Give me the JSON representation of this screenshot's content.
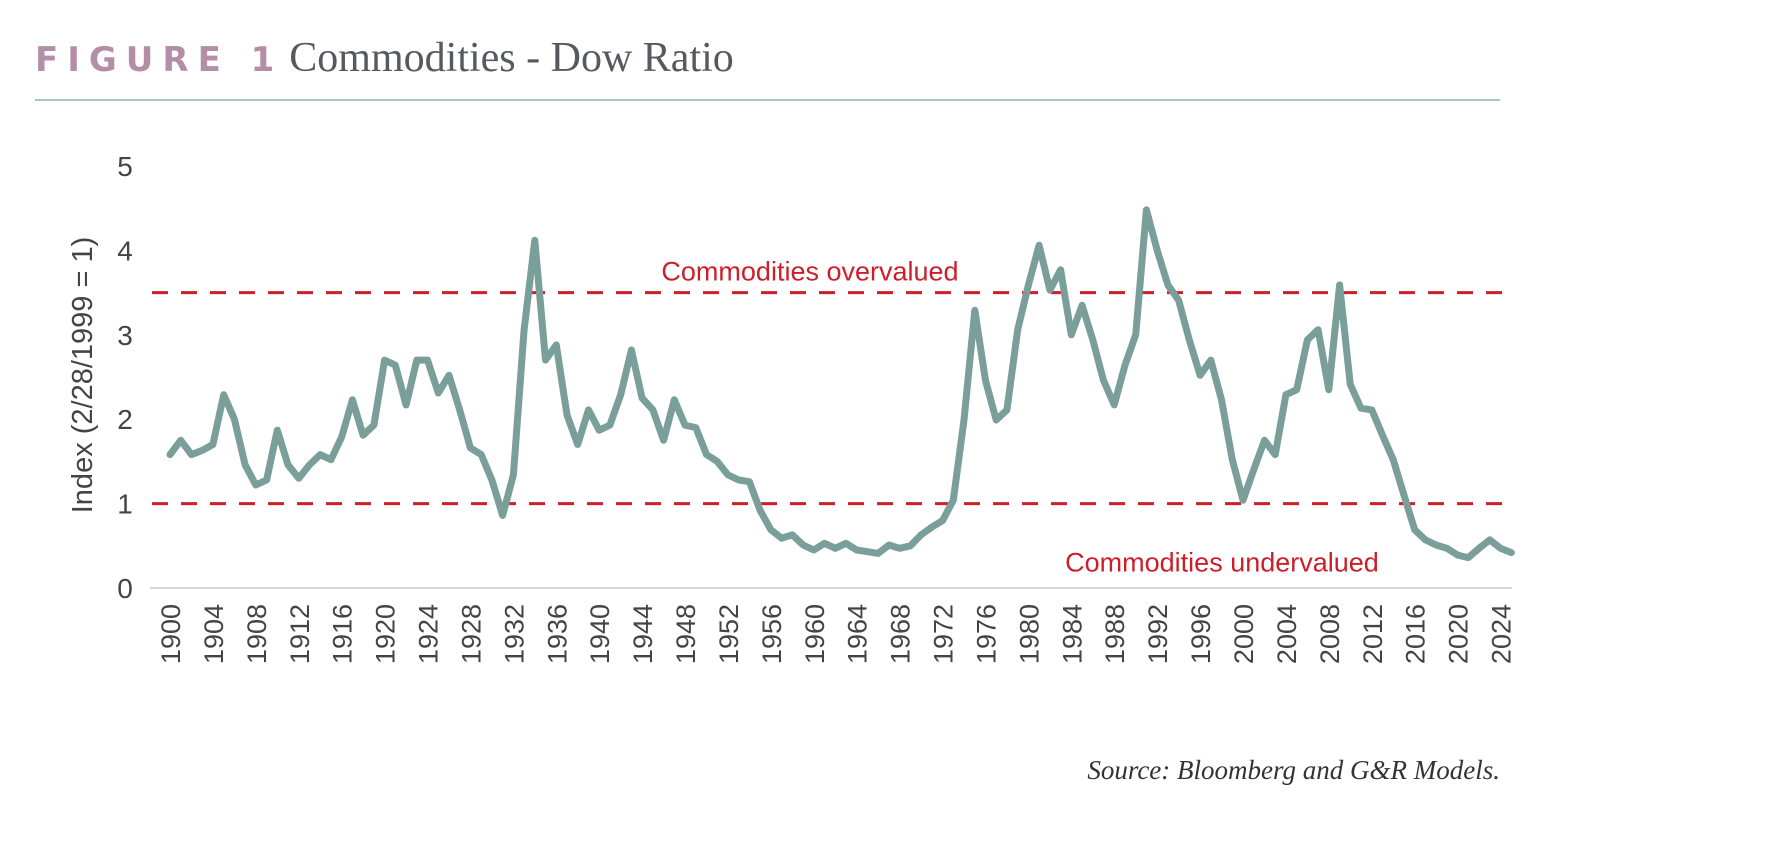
{
  "header": {
    "figure_label": "FIGURE 1",
    "title": "Commodities - Dow Ratio"
  },
  "source": "Source: Bloomberg and G&R Models.",
  "colors": {
    "line": "#7a9e9a",
    "threshold": "#cc1f2a",
    "figure_label": "#b48da6",
    "rule": "#a9c4c4"
  },
  "chart_data": {
    "type": "line",
    "title": "Commodities - Dow Ratio",
    "xlabel": "",
    "ylabel": "Index (2/28/1999 = 1)",
    "ylim": [
      0,
      5
    ],
    "xlim": [
      1900,
      2025
    ],
    "yticks": [
      "0",
      "1",
      "2",
      "3",
      "4",
      "5"
    ],
    "xticks": [
      "1900",
      "1904",
      "1908",
      "1912",
      "1916",
      "1920",
      "1924",
      "1928",
      "1932",
      "1936",
      "1940",
      "1944",
      "1948",
      "1952",
      "1956",
      "1960",
      "1964",
      "1968",
      "1972",
      "1976",
      "1980",
      "1984",
      "1988",
      "1992",
      "1996",
      "2000",
      "2004",
      "2008",
      "2012",
      "2016",
      "2020",
      "2024"
    ],
    "grid": false,
    "thresholds": [
      {
        "value": 3.5,
        "label": "Commodities overvalued"
      },
      {
        "value": 1.0,
        "label": "Commodities undervalued"
      }
    ],
    "x": [
      1900,
      1901,
      1902,
      1903,
      1904,
      1905,
      1906,
      1907,
      1908,
      1909,
      1910,
      1911,
      1912,
      1913,
      1914,
      1915,
      1916,
      1917,
      1918,
      1919,
      1920,
      1921,
      1922,
      1923,
      1924,
      1925,
      1926,
      1927,
      1928,
      1929,
      1930,
      1931,
      1932,
      1933,
      1934,
      1935,
      1936,
      1937,
      1938,
      1939,
      1940,
      1941,
      1942,
      1943,
      1944,
      1945,
      1946,
      1947,
      1948,
      1949,
      1950,
      1951,
      1952,
      1953,
      1954,
      1955,
      1956,
      1957,
      1958,
      1959,
      1960,
      1961,
      1962,
      1963,
      1964,
      1965,
      1966,
      1967,
      1968,
      1969,
      1970,
      1971,
      1972,
      1973,
      1974,
      1975,
      1976,
      1977,
      1978,
      1979,
      1980,
      1981,
      1982,
      1983,
      1984,
      1985,
      1986,
      1987,
      1988,
      1989,
      1990,
      1991,
      1992,
      1993,
      1994,
      1995,
      1996,
      1997,
      1998,
      1999,
      2000,
      2001,
      2002,
      2003,
      2004,
      2005,
      2006,
      2007,
      2008,
      2009,
      2010,
      2011,
      2012,
      2013,
      2014,
      2015,
      2016,
      2017,
      2018,
      2019,
      2020,
      2021,
      2022,
      2023,
      2024,
      2025
    ],
    "values": [
      1.58,
      1.75,
      1.58,
      1.63,
      1.7,
      2.29,
      2.0,
      1.46,
      1.22,
      1.28,
      1.87,
      1.46,
      1.3,
      1.46,
      1.58,
      1.52,
      1.79,
      2.23,
      1.81,
      1.93,
      2.7,
      2.64,
      2.17,
      2.7,
      2.7,
      2.31,
      2.52,
      2.11,
      1.66,
      1.58,
      1.28,
      0.86,
      1.34,
      3.06,
      4.12,
      2.7,
      2.88,
      2.05,
      1.7,
      2.11,
      1.87,
      1.93,
      2.29,
      2.82,
      2.25,
      2.11,
      1.75,
      2.23,
      1.93,
      1.9,
      1.58,
      1.5,
      1.34,
      1.28,
      1.26,
      0.92,
      0.69,
      0.59,
      0.63,
      0.51,
      0.45,
      0.53,
      0.47,
      0.53,
      0.45,
      0.43,
      0.41,
      0.51,
      0.47,
      0.5,
      0.63,
      0.72,
      0.8,
      1.04,
      1.99,
      3.29,
      2.46,
      1.99,
      2.11,
      3.06,
      3.59,
      4.06,
      3.53,
      3.77,
      3.0,
      3.35,
      2.94,
      2.46,
      2.17,
      2.64,
      3.0,
      4.48,
      4.0,
      3.59,
      3.41,
      2.94,
      2.52,
      2.7,
      2.23,
      1.52,
      1.04,
      1.4,
      1.75,
      1.58,
      2.29,
      2.35,
      2.94,
      3.06,
      2.35,
      3.59,
      2.41,
      2.13,
      2.11,
      1.81,
      1.52,
      1.1,
      0.69,
      0.57,
      0.51,
      0.47,
      0.39,
      0.36,
      0.47,
      0.57,
      0.47,
      0.42
    ]
  }
}
